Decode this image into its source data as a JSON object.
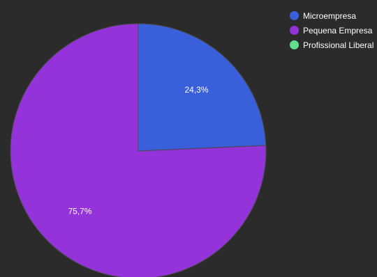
{
  "chart_data": {
    "type": "pie",
    "title": "",
    "slices": [
      {
        "name": "Microempresa",
        "value": 24.3,
        "label": "24,3%",
        "color": "#3a5fdb"
      },
      {
        "name": "Pequena Empresa",
        "value": 75.7,
        "label": "75,7%",
        "color": "#9333d9"
      },
      {
        "name": "Profissional Liberal",
        "value": 0,
        "label": "",
        "color": "#5fe08a"
      }
    ],
    "legend_position": "top-right",
    "start_angle_deg": 0,
    "direction": "clockwise"
  }
}
